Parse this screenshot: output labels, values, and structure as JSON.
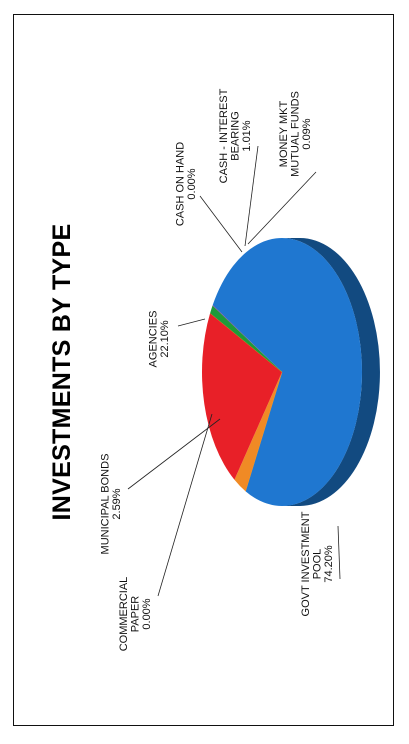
{
  "chart_data": {
    "type": "pie",
    "title": "INVESTMENTS BY TYPE",
    "slices": [
      {
        "label": [
          "GOVT INVESTMENT",
          "POOL"
        ],
        "value_label": "74.20%",
        "value": 74.2,
        "color": "#1f77d0",
        "dark": "#124a80"
      },
      {
        "label": [
          "COMMERCIAL",
          "PAPER"
        ],
        "value_label": "0.00%",
        "value": 0.0,
        "color": "#f0a030",
        "dark": "#9a5f14"
      },
      {
        "label": [
          "MUNICIPAL BONDS"
        ],
        "value_label": "2.59%",
        "value": 2.59,
        "color": "#f08a25",
        "dark": "#9a5410"
      },
      {
        "label": [
          "AGENCIES"
        ],
        "value_label": "22.10%",
        "value": 22.1,
        "color": "#e82028",
        "dark": "#8a1015"
      },
      {
        "label": [
          "CASH ON HAND"
        ],
        "value_label": "0.00%",
        "value": 0.0,
        "color": "#d0a020",
        "dark": "#7a5e10"
      },
      {
        "label": [
          "CASH - INTEREST",
          "BEARING"
        ],
        "value_label": "1.01%",
        "value": 1.01,
        "color": "#1e9a3a",
        "dark": "#0f5a20"
      },
      {
        "label": [
          "MONEY MKT",
          "MUTUAL FUNDS"
        ],
        "value_label": "0.09%",
        "value": 0.09,
        "color": "#7a3a9a",
        "dark": "#40205a"
      }
    ]
  }
}
